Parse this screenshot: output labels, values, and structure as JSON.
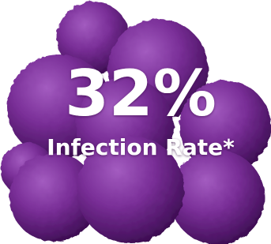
{
  "headline": "32%",
  "caption": "Infection Rate*"
}
